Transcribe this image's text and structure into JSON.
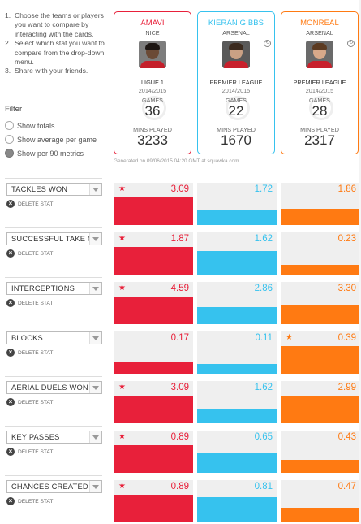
{
  "instructions": [
    {
      "num": "1.",
      "text": "Choose the teams or players you want to compare by interacting with the cards."
    },
    {
      "num": "2.",
      "text": "Select which stat you want to compare from the drop-down menu."
    },
    {
      "num": "3.",
      "text": "Share with your friends."
    }
  ],
  "filter": {
    "title": "Filter",
    "options": [
      {
        "label": "Show totals",
        "selected": false
      },
      {
        "label": "Show average per game",
        "selected": false
      },
      {
        "label": "Show per 90 metrics",
        "selected": true
      }
    ]
  },
  "labels": {
    "games": "GAMES",
    "mins_played": "MINS PLAYED",
    "delete_stat": "DELETE STAT",
    "generated": "Generated on 09/06/2015 04:20 GMT at squawka.com"
  },
  "players": [
    {
      "name": "AMAVI",
      "club": "NICE",
      "league": "LIGUE 1",
      "season": "2014/2015",
      "games": "36",
      "mins": "3233",
      "color": "#e8203a",
      "skin": "#6b4a36",
      "hair": "#1d1613",
      "shirt": "#c41f2a",
      "bg": "#7d7d7d"
    },
    {
      "name": "KIERAN GIBBS",
      "club": "ARSENAL",
      "league": "PREMIER LEAGUE",
      "season": "2014/2015",
      "games": "22",
      "mins": "1670",
      "color": "#36c2ee",
      "skin": "#caa184",
      "hair": "#3b2a1e",
      "shirt": "#c8202c",
      "bg": "#5a5a5a"
    },
    {
      "name": "MONREAL",
      "club": "ARSENAL",
      "league": "PREMIER LEAGUE",
      "season": "2014/2015",
      "games": "28",
      "mins": "2317",
      "color": "#ff7a12",
      "skin": "#d8a98a",
      "hair": "#5c3b22",
      "shirt": "#c8202c",
      "bg": "#6a6a6a"
    }
  ],
  "stats": [
    {
      "label": "TACKLES WON",
      "values": [
        "3.09",
        "1.72",
        "1.86"
      ],
      "leader": 0
    },
    {
      "label": "SUCCESSFUL TAKE O",
      "values": [
        "1.87",
        "1.62",
        "0.23"
      ],
      "leader": 0
    },
    {
      "label": "INTERCEPTIONS",
      "values": [
        "4.59",
        "2.86",
        "3.30"
      ],
      "leader": 0
    },
    {
      "label": "BLOCKS",
      "values": [
        "0.17",
        "0.11",
        "0.39"
      ],
      "leader": 2
    },
    {
      "label": "AERIAL DUELS WON",
      "values": [
        "3.09",
        "1.62",
        "2.99"
      ],
      "leader": 0
    },
    {
      "label": "KEY PASSES",
      "values": [
        "0.89",
        "0.65",
        "0.43"
      ],
      "leader": 0
    },
    {
      "label": "CHANCES CREATED",
      "values": [
        "0.89",
        "0.81",
        "0.47"
      ],
      "leader": 0
    }
  ],
  "icons": {
    "star": "star-icon",
    "delete": "delete-icon",
    "swap": "swap-icon",
    "dropdown": "chevron-down-icon"
  }
}
